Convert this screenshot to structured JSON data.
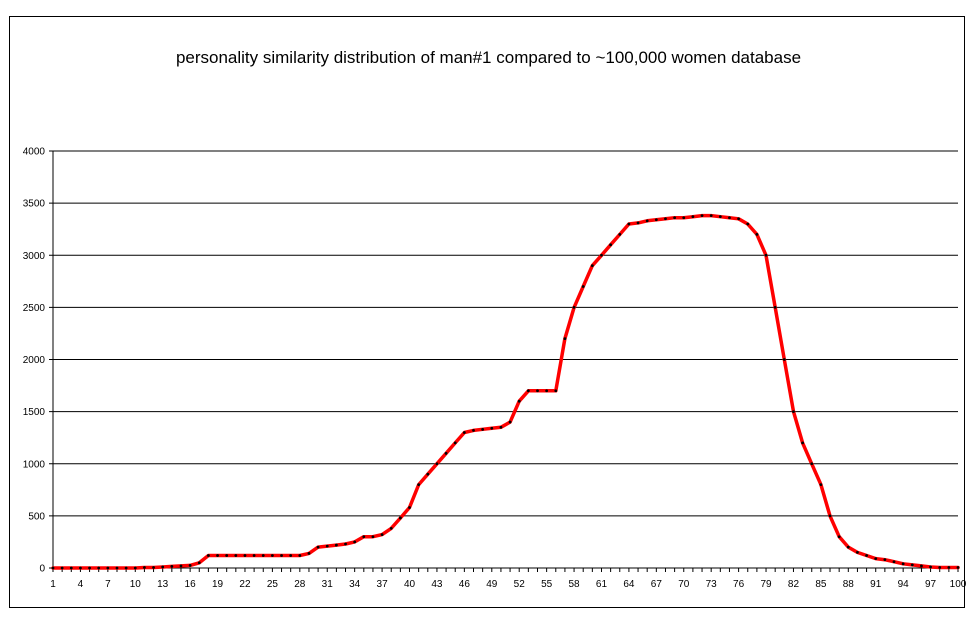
{
  "chart_data": {
    "type": "line",
    "title": "personality similarity distribution of man#1 compared to ~100,000 women database",
    "xlabel": "",
    "ylabel": "",
    "ylim": [
      0,
      4000
    ],
    "y_ticks": [
      0,
      500,
      1000,
      1500,
      2000,
      2500,
      3000,
      3500,
      4000
    ],
    "x_tick_labels": [
      1,
      4,
      7,
      10,
      13,
      16,
      19,
      22,
      25,
      28,
      31,
      34,
      37,
      40,
      43,
      46,
      49,
      52,
      55,
      58,
      61,
      64,
      67,
      70,
      73,
      76,
      79,
      82,
      85,
      88,
      91,
      94,
      97,
      100
    ],
    "grid": "horizontal",
    "legend": "none",
    "colors": {
      "line": "#ff0000",
      "marker": "#000000",
      "grid": "#000000"
    },
    "x": [
      1,
      2,
      3,
      4,
      5,
      6,
      7,
      8,
      9,
      10,
      11,
      12,
      13,
      14,
      15,
      16,
      17,
      18,
      19,
      20,
      21,
      22,
      23,
      24,
      25,
      26,
      27,
      28,
      29,
      30,
      31,
      32,
      33,
      34,
      35,
      36,
      37,
      38,
      39,
      40,
      41,
      42,
      43,
      44,
      45,
      46,
      47,
      48,
      49,
      50,
      51,
      52,
      53,
      54,
      55,
      56,
      57,
      58,
      59,
      60,
      61,
      62,
      63,
      64,
      65,
      66,
      67,
      68,
      69,
      70,
      71,
      72,
      73,
      74,
      75,
      76,
      77,
      78,
      79,
      80,
      81,
      82,
      83,
      84,
      85,
      86,
      87,
      88,
      89,
      90,
      91,
      92,
      93,
      94,
      95,
      96,
      97,
      98,
      99,
      100
    ],
    "series": [
      {
        "values": [
          0,
          0,
          0,
          0,
          0,
          0,
          0,
          0,
          0,
          0,
          5,
          5,
          10,
          15,
          20,
          25,
          50,
          120,
          120,
          120,
          120,
          120,
          120,
          120,
          120,
          120,
          120,
          120,
          140,
          200,
          210,
          220,
          230,
          250,
          300,
          300,
          320,
          380,
          480,
          580,
          800,
          900,
          1000,
          1100,
          1200,
          1300,
          1320,
          1330,
          1340,
          1350,
          1400,
          1600,
          1700,
          1700,
          1700,
          1700,
          2200,
          2500,
          2700,
          2900,
          3000,
          3100,
          3200,
          3300,
          3310,
          3330,
          3340,
          3350,
          3360,
          3360,
          3370,
          3380,
          3380,
          3370,
          3360,
          3350,
          3300,
          3200,
          3000,
          2500,
          2000,
          1500,
          1200,
          1000,
          800,
          500,
          300,
          200,
          150,
          120,
          90,
          80,
          60,
          40,
          30,
          20,
          10,
          5,
          5,
          5
        ]
      }
    ]
  }
}
